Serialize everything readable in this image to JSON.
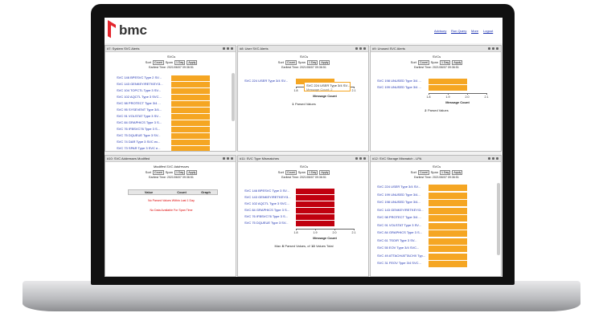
{
  "header": {
    "logo": "bmc",
    "links": [
      "Advisory",
      "Run Query",
      "More",
      "Logout"
    ]
  },
  "panels": [
    {
      "title": "#7: System SVC Alerts",
      "subtitle": "SVCs",
      "controls": {
        "sort_label": "Sort",
        "sort_value": "Count",
        "span_label": "Span",
        "span_value": "1 Day",
        "apply": "Apply"
      },
      "earliest": "Earliest Time: 2021/06/07 09:36:51",
      "bars": {
        "color": "#f5a623",
        "xlim": [
          1.8,
          2.1
        ],
        "labels": [
          "SVC 146 BPESVC Type 2 SV...",
          "SVC 143 GENKEY/RETKEY/3...",
          "SVC 104 TOPCTL Type 3 SV...",
          "SVC 102 AQCTL Type 3 SVC...",
          "SVC 98 PROTECT Type 3/4 ...",
          "SVC 95 SYSEVENT Type 3/4...",
          "SVC 91 VOLSTAT Type 3 SV...",
          "SVC 84 GRAPHICS Type 3 S...",
          "SVC 76 IFBSVC76 Type 3 S...",
          "SVC 75 DQUEUE Type 3 SV...",
          "SVC 74 DAR Type 3 SVC ex...",
          "SVC 73 SPAR Type 3 SVC e..."
        ],
        "values": [
          2,
          2,
          2,
          2,
          2,
          2,
          2,
          2,
          2,
          2,
          2,
          2
        ]
      }
    },
    {
      "title": "#8: User SVC Alerts",
      "subtitle": "SVCs",
      "controls": {
        "sort_label": "Sort",
        "sort_value": "Count",
        "span_label": "Span",
        "span_value": "1 Day",
        "apply": "Apply"
      },
      "earliest": "Earliest Time: 2021/06/07 09:36:51",
      "bars": {
        "color": "#f5a623",
        "xlim": [
          1.8,
          2.1
        ],
        "xticks": [
          1.8,
          1.9,
          {
            "value": 2,
            "label": "2.0"
          },
          2.1
        ],
        "axis_label": "Message Count",
        "labels": [
          "SVC 224 USER Type 3/4 SV..."
        ],
        "values": [
          2
        ]
      },
      "tooltip": {
        "title": "SVC 224 USER Type 3/4 SV...",
        "text": "Message Count: 2"
      },
      "footer": [
        1,
        "Parsed Values"
      ]
    },
    {
      "title": "#9: Unused SVC Alerts",
      "subtitle": "SVCs",
      "controls": {
        "sort_label": "Sort",
        "sort_value": "Count",
        "span_label": "Span",
        "span_value": "1 Day",
        "apply": "Apply"
      },
      "earliest": "Earliest Time: 2021/06/07 09:36:51",
      "bars": {
        "color": "#f5a623",
        "xlim": [
          1.8,
          2.1
        ],
        "xticks": [
          1.8,
          1.9,
          {
            "value": 2,
            "label": "2.0"
          },
          2.1
        ],
        "axis_label": "Message Count",
        "labels": [
          "SVC 198 UNUSED Type 3/4 ...",
          "SVC 199 UNUSED Type 3/4 ..."
        ],
        "values": [
          2,
          2
        ]
      },
      "footer": [
        2,
        "Parsed Values"
      ]
    },
    {
      "title": "#10: SVC Addresses Modified",
      "subtitle": "Modified SVC Addresses",
      "controls": {
        "sort_label": "Sort",
        "sort_value": "Count",
        "span_label": "Span",
        "span_value": "1 Day",
        "apply": "Apply"
      },
      "earliest": "Earliest Time: 2021/06/07 09:36:51",
      "table": {
        "columns": [
          "Value",
          "Count",
          "Graph"
        ],
        "messages": [
          "No Parsed Values Within Last 1 Day",
          "No Data Available For Span Time"
        ]
      }
    },
    {
      "title": "#11: SVC Type Mismatches",
      "subtitle": "SVCs",
      "controls": {
        "sort_label": "Sort",
        "sort_value": "Count",
        "span_label": "Span",
        "span_value": "1 Day",
        "apply": "Apply"
      },
      "earliest": "Earliest Time: 2021/06/07 09:36:51",
      "bars": {
        "color": "#c0000f",
        "xlim": [
          1.8,
          2.1
        ],
        "xticks": [
          1.8,
          1.9,
          {
            "value": 2,
            "label": "2.0"
          },
          2.1
        ],
        "axis_label": "Message Count",
        "labels": [
          "SVC 146 BPESVC Type 3 SV...",
          "SVC 143 GENKEY/RETKEY/3...",
          "SVC 102 AQCTL Type 3 SVC...",
          "SVC 84 GRAPHICS Type 3 S...",
          "SVC 76 IFBSVC76 Type 3 S...",
          "SVC 75 DQUEUE Type 3 SV..."
        ],
        "values": [
          2,
          2,
          2,
          2,
          2,
          2
        ]
      },
      "footer": [
        "Max",
        8,
        "Parsed Values, of",
        13,
        "Values Total"
      ]
    },
    {
      "title": "#12: SVC Storage Mismatch - LPA",
      "subtitle": "SVCs",
      "controls": {
        "sort_label": "Sort",
        "sort_value": "Count",
        "span_label": "Span",
        "span_value": "1 Day",
        "apply": "Apply"
      },
      "earliest": "Earliest Time: 2021/06/07 09:36:51",
      "bars": {
        "color": "#f5a623",
        "xlim": [
          1.8,
          2.1
        ],
        "labels": [
          "SVC 224 USER Type 3/4 SV...",
          "SVC 199 UNUSED Type 3/4...",
          "SVC 198 UNUSED Type 3/4...",
          "SVC 143 GENKEY/RETKEY/3...",
          "SVC 98 PROTECT Type 3/4 ...",
          "SVC 91 VOLSTAT Type 3 SV...",
          "SVC 84 GRAPHICS Type 3 S...",
          "SVC 61 TSO/R Type 3 SV...",
          "SVC 55 EOV Type 3/4 SVC...",
          "SVC 49 ATTACH/ATTACHX Typ...",
          "SVC 31 FEOV Type 3/4 SVC..."
        ],
        "values": [
          2,
          2,
          2,
          2,
          2,
          2,
          2,
          2,
          2,
          2,
          2
        ]
      }
    }
  ]
}
